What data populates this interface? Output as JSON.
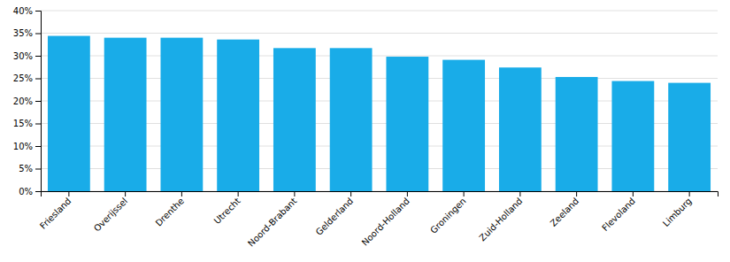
{
  "chart_data": {
    "type": "bar",
    "categories": [
      "Friesland",
      "Overijssel",
      "Drenthe",
      "Utrecht",
      "Noord-Brabant",
      "Gelderland",
      "Noord-Holland",
      "Groningen",
      "Zuid-Holland",
      "Zeeland",
      "Flevoland",
      "Limburg"
    ],
    "values": [
      0.344,
      0.34,
      0.34,
      0.336,
      0.317,
      0.317,
      0.298,
      0.291,
      0.274,
      0.253,
      0.244,
      0.24
    ],
    "color": "#19ACE8",
    "ylim": [
      0,
      0.4
    ],
    "yticks": [
      {
        "value": 0.0,
        "label": "0%"
      },
      {
        "value": 0.05,
        "label": "5%"
      },
      {
        "value": 0.1,
        "label": "10%"
      },
      {
        "value": 0.15,
        "label": "15%"
      },
      {
        "value": 0.2,
        "label": "20%"
      },
      {
        "value": 0.25,
        "label": "25%"
      },
      {
        "value": 0.3,
        "label": "30%"
      },
      {
        "value": 0.35,
        "label": "35%"
      },
      {
        "value": 0.4,
        "label": "40%"
      }
    ],
    "grid": true
  }
}
